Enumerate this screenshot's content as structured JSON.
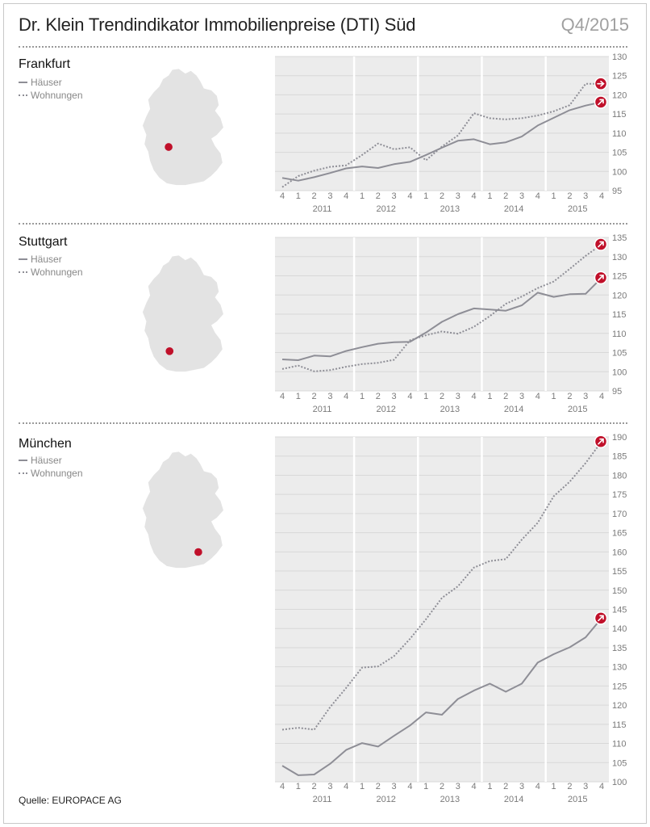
{
  "header": {
    "title": "Dr. Klein Trendindikator Immobilienpreise (DTI) Süd",
    "period": "Q4/2015"
  },
  "legend": {
    "houses": "Häuser",
    "apartments": "Wohnungen"
  },
  "source": "Quelle: EUROPACE AG",
  "colors": {
    "plot_bg": "#ececec",
    "line": "#8e8e96",
    "accent": "#c0102a",
    "axis_text": "#7a7a7a"
  },
  "chart_data": [
    {
      "type": "line",
      "title": "Frankfurt",
      "x_quarters": [
        "4",
        "1",
        "2",
        "3",
        "4",
        "1",
        "2",
        "3",
        "4",
        "1",
        "2",
        "3",
        "4",
        "1",
        "2",
        "3",
        "4",
        "1",
        "2",
        "3",
        "4"
      ],
      "x_years": [
        "2011",
        "2012",
        "2013",
        "2014",
        "2015"
      ],
      "ylim": [
        95,
        130
      ],
      "yticks": [
        95,
        100,
        105,
        110,
        115,
        120,
        125,
        130
      ],
      "series": [
        {
          "name": "Häuser",
          "style": "solid",
          "values": [
            98.3,
            97.6,
            98.5,
            99.6,
            100.8,
            101.3,
            100.9,
            101.9,
            102.5,
            104.3,
            106.2,
            108.0,
            108.4,
            107.1,
            107.6,
            109.1,
            112.0,
            114.0,
            116.0,
            117.2,
            118.1
          ]
        },
        {
          "name": "Wohnungen",
          "style": "dotted",
          "values": [
            95.9,
            98.8,
            100.2,
            101.2,
            101.6,
            104.3,
            107.3,
            105.8,
            106.3,
            102.9,
            106.5,
            109.4,
            115.2,
            113.9,
            113.6,
            113.9,
            114.6,
            115.7,
            117.3,
            122.9,
            122.9
          ]
        }
      ]
    },
    {
      "type": "line",
      "title": "Stuttgart",
      "x_quarters": [
        "4",
        "1",
        "2",
        "3",
        "4",
        "1",
        "2",
        "3",
        "4",
        "1",
        "2",
        "3",
        "4",
        "1",
        "2",
        "3",
        "4",
        "1",
        "2",
        "3",
        "4"
      ],
      "x_years": [
        "2011",
        "2012",
        "2013",
        "2014",
        "2015"
      ],
      "ylim": [
        95,
        135
      ],
      "yticks": [
        95,
        100,
        105,
        110,
        115,
        120,
        125,
        130,
        135
      ],
      "series": [
        {
          "name": "Häuser",
          "style": "solid",
          "values": [
            103.2,
            103.0,
            104.2,
            104.0,
            105.4,
            106.4,
            107.3,
            107.7,
            107.8,
            110.2,
            113.0,
            115.0,
            116.5,
            116.2,
            115.9,
            117.3,
            120.6,
            119.5,
            120.2,
            120.3,
            124.5
          ]
        },
        {
          "name": "Wohnungen",
          "style": "dotted",
          "values": [
            100.7,
            101.6,
            100.1,
            100.4,
            101.3,
            102.0,
            102.3,
            103.1,
            108.2,
            109.5,
            110.5,
            109.9,
            111.7,
            114.5,
            117.7,
            119.6,
            121.8,
            123.5,
            126.8,
            130.2,
            133.2
          ]
        }
      ]
    },
    {
      "type": "line",
      "title": "München",
      "x_quarters": [
        "4",
        "1",
        "2",
        "3",
        "4",
        "1",
        "2",
        "3",
        "4",
        "1",
        "2",
        "3",
        "4",
        "1",
        "2",
        "3",
        "4",
        "1",
        "2",
        "3",
        "4"
      ],
      "x_years": [
        "2011",
        "2012",
        "2013",
        "2014",
        "2015"
      ],
      "ylim": [
        100,
        190
      ],
      "yticks": [
        100,
        105,
        110,
        115,
        120,
        125,
        130,
        135,
        140,
        145,
        150,
        155,
        160,
        165,
        170,
        175,
        180,
        185,
        190
      ],
      "series": [
        {
          "name": "Häuser",
          "style": "solid",
          "values": [
            104.2,
            101.7,
            101.9,
            104.7,
            108.3,
            110.1,
            109.2,
            112.0,
            114.7,
            118.1,
            117.5,
            121.6,
            123.8,
            125.6,
            123.5,
            125.6,
            131.1,
            133.3,
            135.1,
            137.7,
            142.7
          ]
        },
        {
          "name": "Wohnungen",
          "style": "dotted",
          "values": [
            113.6,
            114.1,
            113.6,
            119.5,
            124.5,
            129.8,
            130.1,
            132.8,
            137.3,
            142.4,
            148.0,
            151.0,
            155.9,
            157.6,
            158.1,
            163.2,
            167.6,
            174.5,
            178.3,
            183.2,
            188.8
          ]
        }
      ]
    }
  ]
}
